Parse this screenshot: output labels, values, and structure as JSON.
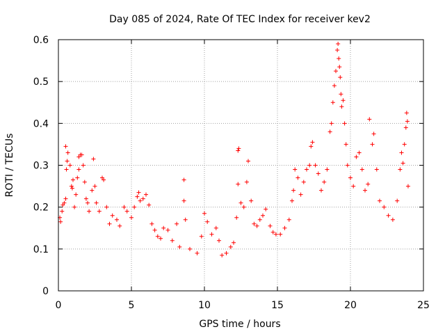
{
  "chart_data": {
    "type": "scatter",
    "title": "Day 085 of 2024, Rate Of TEC Index for receiver kev2",
    "xlabel": "GPS time / hours",
    "ylabel": "ROTI / TECUs",
    "xlim": [
      0,
      25
    ],
    "ylim": [
      0,
      0.6
    ],
    "xticks": [
      0,
      5,
      10,
      15,
      20,
      25
    ],
    "yticks": [
      0,
      0.1,
      0.2,
      0.3,
      0.4,
      0.5,
      0.6
    ],
    "xtick_labels": [
      "0",
      "5",
      "10",
      "15",
      "20",
      "25"
    ],
    "ytick_labels": [
      "0",
      "0.1",
      "0.2",
      "0.3",
      "0.4",
      "0.5",
      "0.6"
    ],
    "grid": true,
    "marker": "+",
    "color": "#ff0000",
    "points": [
      [
        0.1,
        0.175
      ],
      [
        0.15,
        0.165
      ],
      [
        0.25,
        0.19
      ],
      [
        0.3,
        0.205
      ],
      [
        0.4,
        0.21
      ],
      [
        0.5,
        0.22
      ],
      [
        0.55,
        0.29
      ],
      [
        0.6,
        0.31
      ],
      [
        0.5,
        0.345
      ],
      [
        0.65,
        0.33
      ],
      [
        0.8,
        0.3
      ],
      [
        0.9,
        0.25
      ],
      [
        0.95,
        0.245
      ],
      [
        1.0,
        0.265
      ],
      [
        1.1,
        0.2
      ],
      [
        1.2,
        0.23
      ],
      [
        1.3,
        0.27
      ],
      [
        1.4,
        0.29
      ],
      [
        1.4,
        0.32
      ],
      [
        1.5,
        0.325
      ],
      [
        1.6,
        0.325
      ],
      [
        1.7,
        0.3
      ],
      [
        1.8,
        0.26
      ],
      [
        1.9,
        0.22
      ],
      [
        2.0,
        0.21
      ],
      [
        2.1,
        0.19
      ],
      [
        2.3,
        0.24
      ],
      [
        2.4,
        0.315
      ],
      [
        2.5,
        0.25
      ],
      [
        2.6,
        0.21
      ],
      [
        2.8,
        0.19
      ],
      [
        3.0,
        0.27
      ],
      [
        3.1,
        0.265
      ],
      [
        3.3,
        0.2
      ],
      [
        3.5,
        0.16
      ],
      [
        3.7,
        0.18
      ],
      [
        4.0,
        0.17
      ],
      [
        4.2,
        0.155
      ],
      [
        4.5,
        0.2
      ],
      [
        4.7,
        0.19
      ],
      [
        5.0,
        0.175
      ],
      [
        5.2,
        0.2
      ],
      [
        5.4,
        0.225
      ],
      [
        5.5,
        0.235
      ],
      [
        5.6,
        0.215
      ],
      [
        5.8,
        0.22
      ],
      [
        6.0,
        0.23
      ],
      [
        6.2,
        0.205
      ],
      [
        6.4,
        0.16
      ],
      [
        6.6,
        0.145
      ],
      [
        6.8,
        0.13
      ],
      [
        7.0,
        0.125
      ],
      [
        7.2,
        0.15
      ],
      [
        7.5,
        0.145
      ],
      [
        7.8,
        0.12
      ],
      [
        8.1,
        0.16
      ],
      [
        8.3,
        0.105
      ],
      [
        8.6,
        0.265
      ],
      [
        8.6,
        0.215
      ],
      [
        8.7,
        0.17
      ],
      [
        9.0,
        0.1
      ],
      [
        9.5,
        0.09
      ],
      [
        9.8,
        0.13
      ],
      [
        10.0,
        0.185
      ],
      [
        10.2,
        0.165
      ],
      [
        10.5,
        0.135
      ],
      [
        10.8,
        0.15
      ],
      [
        11.0,
        0.12
      ],
      [
        11.2,
        0.085
      ],
      [
        11.5,
        0.09
      ],
      [
        11.8,
        0.105
      ],
      [
        12.0,
        0.115
      ],
      [
        12.2,
        0.175
      ],
      [
        12.3,
        0.255
      ],
      [
        12.3,
        0.335
      ],
      [
        12.35,
        0.34
      ],
      [
        12.5,
        0.21
      ],
      [
        12.7,
        0.2
      ],
      [
        12.9,
        0.26
      ],
      [
        13.0,
        0.31
      ],
      [
        13.2,
        0.215
      ],
      [
        13.4,
        0.16
      ],
      [
        13.6,
        0.155
      ],
      [
        13.8,
        0.17
      ],
      [
        14.0,
        0.18
      ],
      [
        14.2,
        0.195
      ],
      [
        14.5,
        0.155
      ],
      [
        14.7,
        0.14
      ],
      [
        14.9,
        0.135
      ],
      [
        15.2,
        0.135
      ],
      [
        15.5,
        0.15
      ],
      [
        15.8,
        0.17
      ],
      [
        16.0,
        0.215
      ],
      [
        16.1,
        0.24
      ],
      [
        16.2,
        0.29
      ],
      [
        16.4,
        0.27
      ],
      [
        16.6,
        0.23
      ],
      [
        16.8,
        0.26
      ],
      [
        17.0,
        0.29
      ],
      [
        17.2,
        0.3
      ],
      [
        17.3,
        0.345
      ],
      [
        17.4,
        0.355
      ],
      [
        17.6,
        0.3
      ],
      [
        17.8,
        0.28
      ],
      [
        18.0,
        0.24
      ],
      [
        18.2,
        0.26
      ],
      [
        18.4,
        0.29
      ],
      [
        18.6,
        0.38
      ],
      [
        18.7,
        0.4
      ],
      [
        18.8,
        0.45
      ],
      [
        18.9,
        0.49
      ],
      [
        19.0,
        0.525
      ],
      [
        19.1,
        0.575
      ],
      [
        19.15,
        0.59
      ],
      [
        19.2,
        0.555
      ],
      [
        19.25,
        0.535
      ],
      [
        19.3,
        0.51
      ],
      [
        19.35,
        0.47
      ],
      [
        19.4,
        0.44
      ],
      [
        19.5,
        0.455
      ],
      [
        19.6,
        0.4
      ],
      [
        19.7,
        0.35
      ],
      [
        19.8,
        0.3
      ],
      [
        20.0,
        0.27
      ],
      [
        20.2,
        0.25
      ],
      [
        20.4,
        0.32
      ],
      [
        20.6,
        0.33
      ],
      [
        20.8,
        0.29
      ],
      [
        21.0,
        0.24
      ],
      [
        21.2,
        0.255
      ],
      [
        21.3,
        0.41
      ],
      [
        21.5,
        0.35
      ],
      [
        21.6,
        0.375
      ],
      [
        21.8,
        0.29
      ],
      [
        22.0,
        0.215
      ],
      [
        22.3,
        0.2
      ],
      [
        22.6,
        0.18
      ],
      [
        22.9,
        0.17
      ],
      [
        23.2,
        0.215
      ],
      [
        23.4,
        0.29
      ],
      [
        23.5,
        0.33
      ],
      [
        23.6,
        0.305
      ],
      [
        23.7,
        0.35
      ],
      [
        23.8,
        0.39
      ],
      [
        23.85,
        0.425
      ],
      [
        23.9,
        0.405
      ],
      [
        23.95,
        0.25
      ]
    ]
  }
}
